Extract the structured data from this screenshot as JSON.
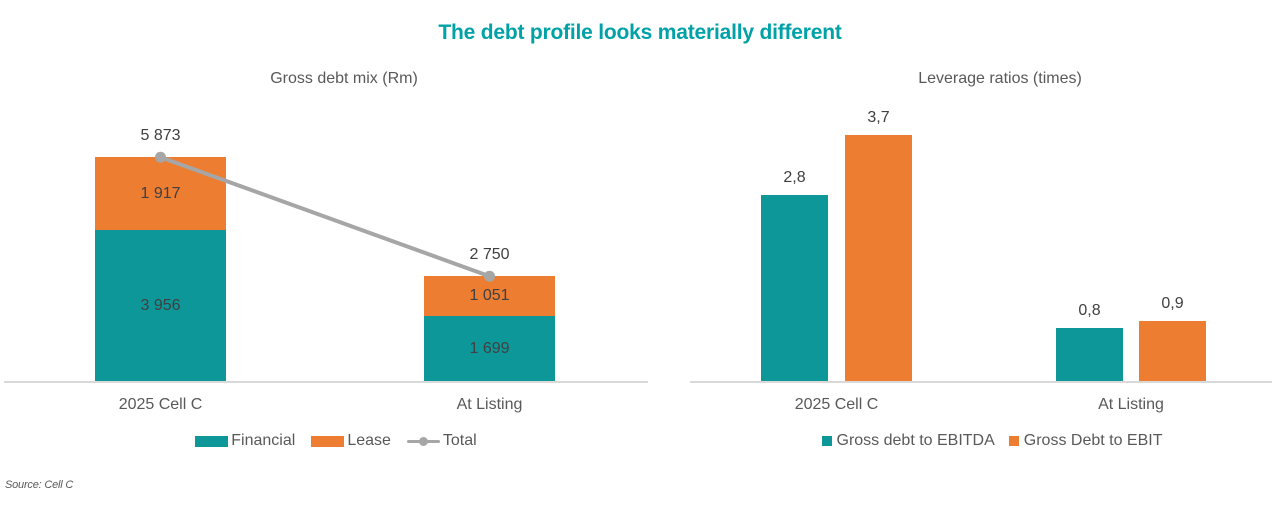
{
  "title": "The debt profile looks materially different",
  "source": "Source: Cell C",
  "colors": {
    "teal": "#0d9799",
    "orange": "#ed7d31",
    "title_teal": "#00a2a8",
    "total_line_gray": "#a6a6a6",
    "axis_gray": "#d9d9d9",
    "data_label_dark": "#404040",
    "text_gray": "#595959"
  },
  "chart_data": [
    {
      "type": "bar",
      "variant": "stacked-with-total-line",
      "title": "Gross debt mix (Rm)",
      "unit": "Rm",
      "categories": [
        "2025 Cell C",
        "At Listing"
      ],
      "series": [
        {
          "name": "Financial",
          "color": "teal",
          "values": [
            3956,
            1699
          ],
          "value_labels": [
            "3 956",
            "1 699"
          ]
        },
        {
          "name": "Lease",
          "color": "orange",
          "values": [
            1917,
            1051
          ],
          "value_labels": [
            "1 917",
            "1 051"
          ]
        }
      ],
      "total_line": {
        "name": "Total",
        "color": "gray",
        "values": [
          5873,
          2750
        ],
        "value_labels": [
          "5 873",
          "2 750"
        ]
      },
      "ylim": [
        0,
        5873
      ],
      "gridlines": false,
      "legend_position": "bottom"
    },
    {
      "type": "bar",
      "variant": "grouped",
      "title": "Leverage ratios (times)",
      "unit": "times",
      "categories": [
        "2025 Cell C",
        "At Listing"
      ],
      "series": [
        {
          "name": "Gross debt to EBITDA",
          "color": "teal",
          "values": [
            2.8,
            0.8
          ],
          "value_labels": [
            "2,8",
            "0,8"
          ]
        },
        {
          "name": "Gross Debt to EBIT",
          "color": "orange",
          "values": [
            3.7,
            0.9
          ],
          "value_labels": [
            "3,7",
            "0,9"
          ]
        }
      ],
      "ylim": [
        0,
        4
      ],
      "gridlines": false,
      "legend_position": "bottom"
    }
  ]
}
